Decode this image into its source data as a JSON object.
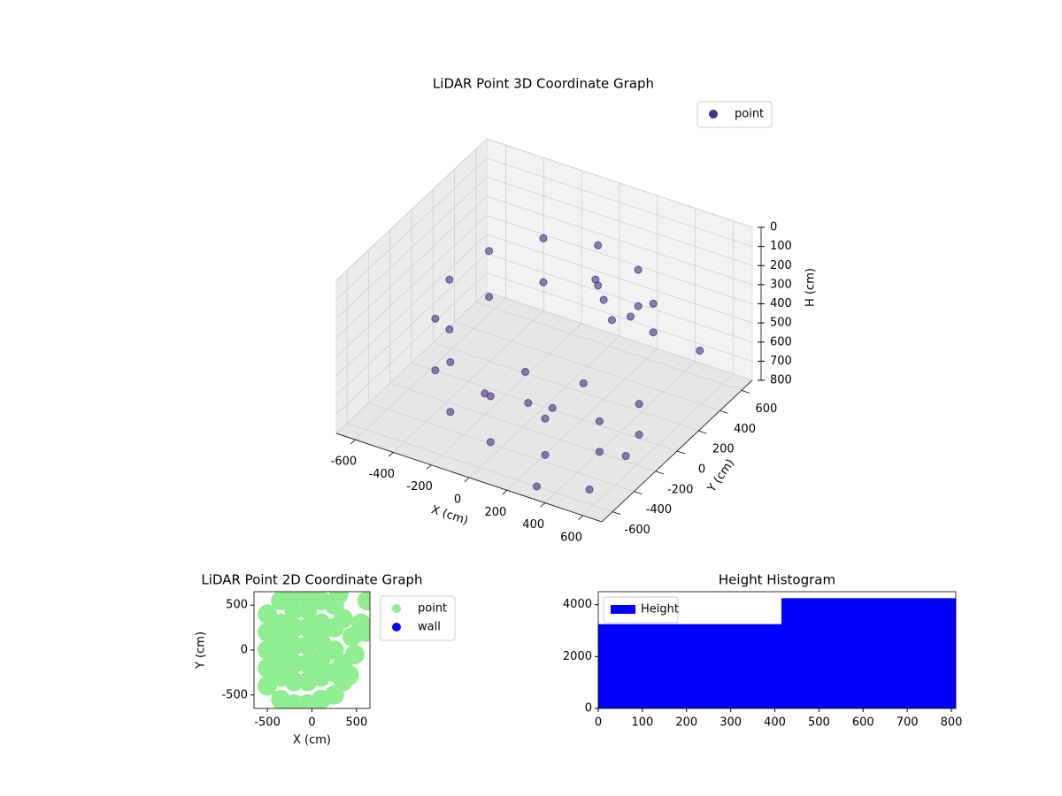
{
  "chart_data": [
    {
      "type": "scatter3d",
      "title": "LiDAR Point 3D Coordinate Graph",
      "xlabel": "X (cm)",
      "ylabel": "Y (cm)",
      "zlabel": "H (cm)",
      "xlim": [
        -700,
        700
      ],
      "xticks": [
        -600,
        -400,
        -200,
        0,
        200,
        400,
        600
      ],
      "ylim": [
        -700,
        700
      ],
      "yticks": [
        -600,
        -400,
        -200,
        0,
        200,
        400,
        600
      ],
      "zlim": [
        0,
        800
      ],
      "zticks": [
        0,
        100,
        200,
        300,
        400,
        500,
        600,
        700,
        800
      ],
      "zinvert": true,
      "grid": true,
      "legend": "upper right",
      "series": [
        {
          "name": "point",
          "color": "#46337e",
          "x": [
            433,
            433,
            250,
            250,
            0,
            0,
            -250,
            -250,
            -433,
            -433,
            -500,
            -500,
            -433,
            -433,
            -250,
            -250,
            0,
            0,
            250,
            250,
            433,
            433,
            500,
            500,
            100,
            200,
            300,
            -100,
            0,
            100,
            -200,
            150,
            650,
            600,
            550,
            300,
            200
          ],
          "y": [
            250,
            250,
            433,
            433,
            500,
            500,
            433,
            433,
            250,
            250,
            0,
            0,
            -250,
            -250,
            -433,
            -433,
            -500,
            -500,
            -433,
            -433,
            -250,
            -250,
            0,
            0,
            300,
            200,
            100,
            0,
            -150,
            -100,
            -200,
            100,
            300,
            -300,
            -550,
            -600,
            450
          ],
          "z": [
            250,
            400,
            230,
            420,
            220,
            430,
            230,
            460,
            260,
            500,
            300,
            560,
            350,
            620,
            420,
            680,
            480,
            720,
            550,
            740,
            600,
            760,
            620,
            780,
            260,
            280,
            300,
            650,
            700,
            720,
            690,
            680,
            450,
            700,
            760,
            800,
            500
          ]
        }
      ]
    },
    {
      "type": "scatter",
      "title": "LiDAR Point 2D Coordinate Graph",
      "xlabel": "X (cm)",
      "ylabel": "Y (cm)",
      "xlim": [
        -650,
        650
      ],
      "xticks": [
        -500,
        0,
        500
      ],
      "ylim": [
        -650,
        650
      ],
      "yticks": [
        -500,
        0,
        500
      ],
      "legend": "outside upper right",
      "series": [
        {
          "name": "point",
          "color": "#90ee90",
          "x": [
            -500,
            -500,
            -500,
            -500,
            -500,
            -350,
            -350,
            -350,
            -350,
            -350,
            -350,
            -200,
            -200,
            -200,
            -200,
            -200,
            -200,
            -200,
            -50,
            -50,
            -50,
            -50,
            -50,
            -50,
            -50,
            100,
            100,
            100,
            100,
            100,
            100,
            250,
            250,
            250,
            250,
            250,
            350,
            350,
            350,
            300,
            450,
            480,
            420,
            550,
            620,
            600
          ],
          "y": [
            -400,
            -200,
            0,
            200,
            400,
            -550,
            -300,
            -100,
            100,
            300,
            550,
            -600,
            -350,
            -150,
            50,
            250,
            450,
            620,
            -600,
            -350,
            -150,
            50,
            250,
            450,
            620,
            -550,
            -300,
            -100,
            100,
            300,
            550,
            -500,
            -250,
            0,
            250,
            500,
            -350,
            -150,
            350,
            620,
            150,
            -50,
            -280,
            300,
            550,
            200
          ]
        },
        {
          "name": "wall",
          "color": "#0000ff",
          "x": [],
          "y": []
        }
      ]
    },
    {
      "type": "histogram",
      "title": "Height Histogram",
      "bins": [
        0,
        415,
        810
      ],
      "counts": [
        3250,
        4250
      ],
      "name": "Height",
      "color": "#0000ff",
      "xlim": [
        0,
        810
      ],
      "xticks": [
        0,
        100,
        200,
        300,
        400,
        500,
        600,
        700,
        800
      ],
      "ylim": [
        0,
        4500
      ],
      "yticks": [
        0,
        2000,
        4000
      ],
      "legend": "upper left"
    }
  ]
}
